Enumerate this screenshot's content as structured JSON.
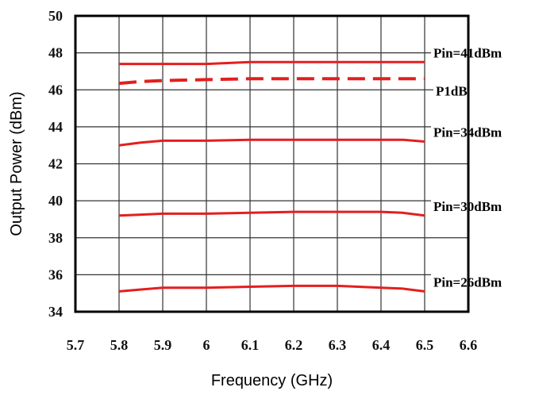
{
  "chart_data": {
    "type": "line",
    "title": "",
    "xlabel": "Frequency (GHz)",
    "ylabel": "Output Power (dBm)",
    "xlim": [
      5.7,
      6.6
    ],
    "ylim": [
      34,
      50
    ],
    "xticks": [
      "5.7",
      "5.8",
      "5.9",
      "6",
      "6.1",
      "6.2",
      "6.3",
      "6.4",
      "6.5",
      "6.6"
    ],
    "yticks": [
      "34",
      "36",
      "38",
      "40",
      "42",
      "44",
      "46",
      "48",
      "50"
    ],
    "grid": true,
    "line_color": "#e41e1e",
    "x": [
      5.8,
      5.85,
      5.9,
      6.0,
      6.1,
      6.2,
      6.3,
      6.4,
      6.45,
      6.5
    ],
    "series": [
      {
        "name": "Pin=41dBm",
        "style": "solid",
        "values": [
          47.4,
          47.4,
          47.4,
          47.4,
          47.5,
          47.5,
          47.5,
          47.5,
          47.5,
          47.5
        ]
      },
      {
        "name": "P1dB",
        "style": "dashed",
        "values": [
          46.35,
          46.45,
          46.5,
          46.55,
          46.6,
          46.6,
          46.6,
          46.6,
          46.6,
          46.6
        ]
      },
      {
        "name": "Pin=34dBm",
        "style": "solid",
        "values": [
          43.0,
          43.15,
          43.25,
          43.25,
          43.3,
          43.3,
          43.3,
          43.3,
          43.3,
          43.2
        ]
      },
      {
        "name": "Pin=30dBm",
        "style": "solid",
        "values": [
          39.2,
          39.25,
          39.3,
          39.3,
          39.35,
          39.4,
          39.4,
          39.4,
          39.35,
          39.2
        ]
      },
      {
        "name": "Pin=26dBm",
        "style": "solid",
        "values": [
          35.1,
          35.2,
          35.3,
          35.3,
          35.35,
          35.4,
          35.4,
          35.3,
          35.25,
          35.1
        ]
      }
    ]
  }
}
